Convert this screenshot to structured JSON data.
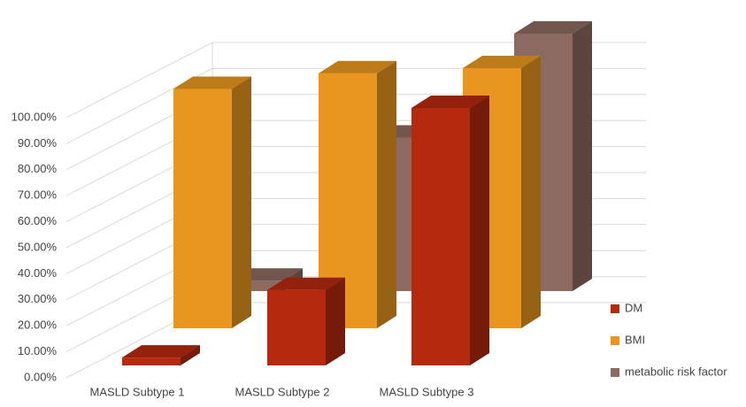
{
  "chart_data": {
    "type": "bar3d",
    "categories": [
      "MASLD Subtype 1",
      "MASLD Subtype 2",
      "MASLD Subtype 3"
    ],
    "series": [
      {
        "name": "DM",
        "color": "#b5290f",
        "values": [
          3,
          29,
          99
        ]
      },
      {
        "name": "BMI",
        "color": "#e8961f",
        "values": [
          92,
          98,
          100
        ]
      },
      {
        "name": "metabolic risk factor",
        "color": "#8c6a5f",
        "values": [
          4,
          59,
          99
        ]
      }
    ],
    "ylim": [
      0,
      100
    ],
    "yticks": [
      {
        "value": 0,
        "label": "0.00%"
      },
      {
        "value": 10,
        "label": "10.00%"
      },
      {
        "value": 20,
        "label": "20.00%"
      },
      {
        "value": 30,
        "label": "30.00%"
      },
      {
        "value": 40,
        "label": "40.00%"
      },
      {
        "value": 50,
        "label": "50.00%"
      },
      {
        "value": 60,
        "label": "60.00%"
      },
      {
        "value": 70,
        "label": "70.00%"
      },
      {
        "value": 80,
        "label": "80.00%"
      },
      {
        "value": 90,
        "label": "90.00%"
      },
      {
        "value": 100,
        "label": "100.00%"
      }
    ],
    "grid": true
  }
}
